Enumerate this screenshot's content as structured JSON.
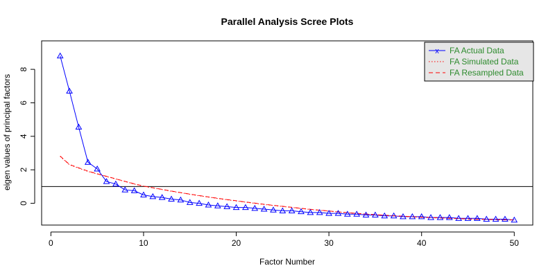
{
  "chart_data": {
    "type": "line",
    "title": "Parallel Analysis Scree Plots",
    "xlabel": "Factor Number",
    "ylabel": "eigen values of principal factors",
    "xlim": [
      -1,
      52
    ],
    "ylim": [
      -1.3,
      9.7
    ],
    "x_ticks": [
      0,
      10,
      20,
      30,
      40,
      50
    ],
    "y_ticks": [
      0,
      2,
      4,
      6,
      8
    ],
    "reference_line_y": 1,
    "legend": {
      "position": "top-right",
      "entries": [
        {
          "label": "FA  Actual Data",
          "color": "#0000ff",
          "style": "solid",
          "marker": "x"
        },
        {
          "label": "FA  Simulated Data",
          "color": "#ff0000",
          "style": "dotted",
          "marker": ""
        },
        {
          "label": "FA  Resampled Data",
          "color": "#ff0000",
          "style": "dashed",
          "marker": ""
        }
      ]
    },
    "x": [
      1,
      2,
      3,
      4,
      5,
      6,
      7,
      8,
      9,
      10,
      11,
      12,
      13,
      14,
      15,
      16,
      17,
      18,
      19,
      20,
      21,
      22,
      23,
      24,
      25,
      26,
      27,
      28,
      29,
      30,
      31,
      32,
      33,
      34,
      35,
      36,
      37,
      38,
      39,
      40,
      41,
      42,
      43,
      44,
      45,
      46,
      47,
      48,
      49,
      50
    ],
    "series": [
      {
        "name": "FA  Actual Data",
        "color": "#0000ff",
        "values": [
          8.8,
          6.7,
          4.55,
          2.45,
          2.05,
          1.3,
          1.15,
          0.8,
          0.75,
          0.5,
          0.4,
          0.35,
          0.25,
          0.2,
          0.05,
          0.0,
          -0.1,
          -0.15,
          -0.2,
          -0.25,
          -0.25,
          -0.3,
          -0.35,
          -0.4,
          -0.45,
          -0.45,
          -0.5,
          -0.55,
          -0.55,
          -0.6,
          -0.6,
          -0.65,
          -0.65,
          -0.7,
          -0.7,
          -0.75,
          -0.75,
          -0.8,
          -0.8,
          -0.8,
          -0.85,
          -0.85,
          -0.85,
          -0.9,
          -0.9,
          -0.9,
          -0.95,
          -0.95,
          -0.95,
          -1.0
        ]
      },
      {
        "name": "FA  Simulated Data",
        "color": "#ff0000",
        "values": [
          2.8,
          2.3,
          2.1,
          1.9,
          1.75,
          1.6,
          1.45,
          1.3,
          1.15,
          1.02,
          0.92,
          0.82,
          0.72,
          0.63,
          0.54,
          0.45,
          0.37,
          0.29,
          0.21,
          0.14,
          0.07,
          0.0,
          -0.07,
          -0.13,
          -0.19,
          -0.25,
          -0.31,
          -0.37,
          -0.42,
          -0.47,
          -0.52,
          -0.57,
          -0.61,
          -0.65,
          -0.69,
          -0.72,
          -0.75,
          -0.78,
          -0.81,
          -0.84,
          -0.86,
          -0.88,
          -0.9,
          -0.92,
          -0.94,
          -0.96,
          -0.97,
          -0.98,
          -0.99,
          -1.0
        ]
      },
      {
        "name": "FA  Resampled Data",
        "color": "#ff0000",
        "values": [
          2.82,
          2.32,
          2.12,
          1.92,
          1.76,
          1.61,
          1.46,
          1.31,
          1.16,
          1.03,
          0.93,
          0.83,
          0.73,
          0.64,
          0.55,
          0.46,
          0.38,
          0.3,
          0.22,
          0.15,
          0.08,
          0.01,
          -0.06,
          -0.12,
          -0.18,
          -0.24,
          -0.3,
          -0.36,
          -0.41,
          -0.46,
          -0.51,
          -0.56,
          -0.6,
          -0.64,
          -0.68,
          -0.71,
          -0.74,
          -0.77,
          -0.8,
          -0.83,
          -0.85,
          -0.87,
          -0.89,
          -0.91,
          -0.93,
          -0.95,
          -0.96,
          -0.97,
          -0.98,
          -0.99
        ]
      }
    ]
  }
}
